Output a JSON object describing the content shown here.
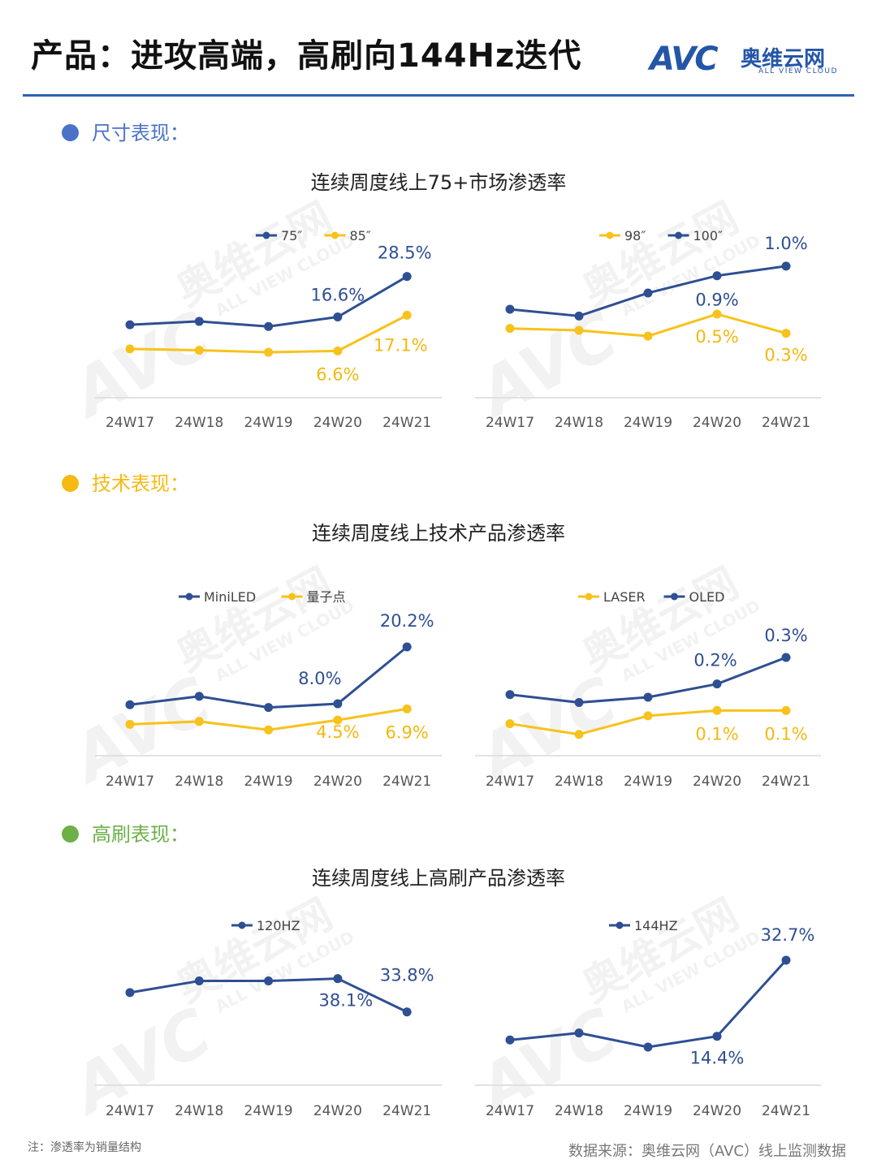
{
  "title": "产品：进攻高端，高刷向144Hz迭代",
  "logo": {
    "mark": "AVC",
    "name_cn": "奥维云网",
    "name_en": "ALL VIEW CLOUD"
  },
  "sections": [
    {
      "label": "尺寸表现：",
      "color": "#4a72c8"
    },
    {
      "label": "技术表现：",
      "color": "#f5bb12"
    },
    {
      "label": "高刷表现：",
      "color": "#6db048"
    }
  ],
  "block_titles": [
    "连续周度线上75+市场渗透率",
    "连续周度线上技术产品渗透率",
    "连续周度线上高刷产品渗透率"
  ],
  "watermark": {
    "mark": "AVC",
    "name_cn": "奥维云网",
    "name_en": "ALL VIEW CLOUD"
  },
  "colors": {
    "blue": "#2f4f93",
    "yellow": "#f7c21b"
  },
  "chart_data": [
    {
      "type": "line",
      "categories": [
        "24W17",
        "24W18",
        "24W19",
        "24W20",
        "24W21"
      ],
      "series": [
        {
          "name": "75″",
          "color": "#2f4f93",
          "values": [
            14.3,
            15.3,
            13.8,
            16.6,
            28.5
          ],
          "labels": [
            null,
            null,
            null,
            "16.6%",
            "28.5%"
          ]
        },
        {
          "name": "85″",
          "color": "#f7c21b",
          "values": [
            7.2,
            6.8,
            6.2,
            6.6,
            17.1
          ],
          "labels": [
            null,
            null,
            null,
            "6.6%",
            "17.1%"
          ]
        }
      ]
    },
    {
      "type": "line",
      "categories": [
        "24W17",
        "24W18",
        "24W19",
        "24W20",
        "24W21"
      ],
      "series": [
        {
          "name": "98″",
          "color": "#f7c21b",
          "values": [
            0.35,
            0.33,
            0.27,
            0.5,
            0.3
          ],
          "labels": [
            null,
            null,
            null,
            "0.5%",
            "0.3%"
          ]
        },
        {
          "name": "100″",
          "color": "#2f4f93",
          "values": [
            0.55,
            0.48,
            0.72,
            0.9,
            1.0
          ],
          "labels": [
            null,
            null,
            null,
            "0.9%",
            "1.0%"
          ]
        }
      ]
    },
    {
      "type": "line",
      "categories": [
        "24W17",
        "24W18",
        "24W19",
        "24W20",
        "24W21"
      ],
      "series": [
        {
          "name": "MiniLED",
          "color": "#2f4f93",
          "values": [
            7.8,
            9.6,
            7.2,
            8.0,
            20.2
          ],
          "labels": [
            null,
            null,
            null,
            "8.0%",
            "20.2%"
          ]
        },
        {
          "name": "量子点",
          "color": "#f7c21b",
          "values": [
            3.6,
            4.2,
            2.4,
            4.5,
            6.9
          ],
          "labels": [
            null,
            null,
            null,
            "4.5%",
            "6.9%"
          ]
        }
      ]
    },
    {
      "type": "line",
      "categories": [
        "24W17",
        "24W18",
        "24W19",
        "24W20",
        "24W21"
      ],
      "series": [
        {
          "name": "LASER",
          "color": "#f7c21b",
          "values": [
            0.05,
            0.01,
            0.08,
            0.1,
            0.1
          ],
          "labels": [
            null,
            null,
            null,
            "0.1%",
            "0.1%"
          ]
        },
        {
          "name": "OLED",
          "color": "#2f4f93",
          "values": [
            0.16,
            0.13,
            0.15,
            0.2,
            0.3
          ],
          "labels": [
            null,
            null,
            null,
            "0.2%",
            "0.3%"
          ]
        }
      ]
    },
    {
      "type": "line",
      "categories": [
        "24W17",
        "24W18",
        "24W19",
        "24W20",
        "24W21"
      ],
      "series": [
        {
          "name": "120HZ",
          "color": "#2f4f93",
          "values": [
            36.3,
            37.8,
            37.8,
            38.1,
            33.8
          ],
          "labels": [
            null,
            null,
            null,
            "38.1%",
            "33.8%"
          ]
        }
      ]
    },
    {
      "type": "line",
      "categories": [
        "24W17",
        "24W18",
        "24W19",
        "24W20",
        "24W21"
      ],
      "series": [
        {
          "name": "144HZ",
          "color": "#2f4f93",
          "values": [
            13.5,
            15.2,
            11.8,
            14.4,
            32.7
          ],
          "labels": [
            null,
            null,
            null,
            "14.4%",
            "32.7%"
          ]
        }
      ]
    }
  ],
  "footnote": "注：渗透率为销量结构",
  "source": "数据来源：奥维云网（AVC）线上监测数据"
}
